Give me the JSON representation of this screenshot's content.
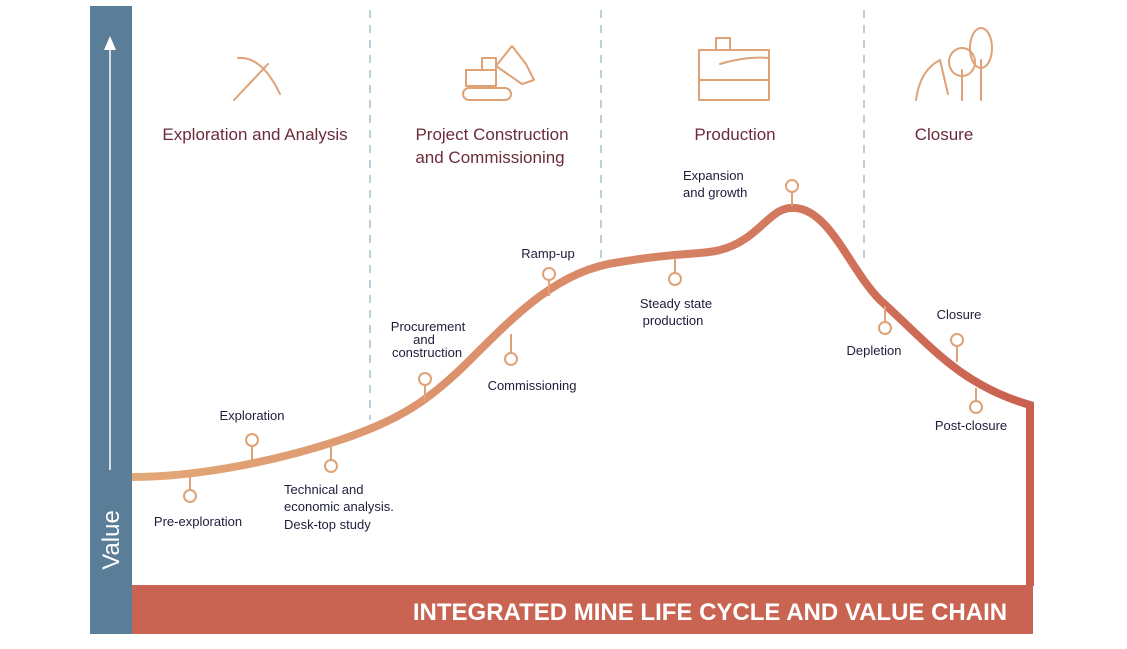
{
  "axis_label": "Value",
  "banner": "INTEGRATED MINE LIFE CYCLE AND VALUE CHAIN",
  "phases": [
    {
      "lines": [
        "Exploration and Analysis"
      ]
    },
    {
      "lines": [
        "Project Construction",
        "and Commissioning"
      ]
    },
    {
      "lines": [
        "Production"
      ]
    },
    {
      "lines": [
        "Closure"
      ]
    }
  ],
  "milestones": [
    {
      "lines": [
        "Pre-exploration"
      ]
    },
    {
      "lines": [
        "Exploration"
      ]
    },
    {
      "lines": [
        "Technical and",
        "economic analysis.",
        "Desk-top study"
      ]
    },
    {
      "lines": [
        "Procurement",
        "and",
        "construction"
      ]
    },
    {
      "lines": [
        "Commissioning"
      ]
    },
    {
      "lines": [
        "Ramp-up"
      ]
    },
    {
      "lines": [
        "Steady state",
        "production"
      ]
    },
    {
      "lines": [
        "Expansion",
        "and growth"
      ]
    },
    {
      "lines": [
        "Depletion"
      ]
    },
    {
      "lines": [
        "Closure"
      ]
    },
    {
      "lines": [
        "Post-closure"
      ]
    }
  ]
}
